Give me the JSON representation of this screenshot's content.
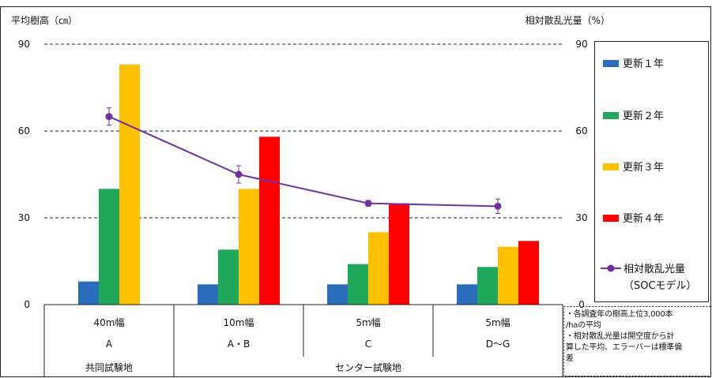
{
  "chart_data": {
    "type": "bar",
    "left_axis_title": "平均樹高（㎝）",
    "right_axis_title": "相対散乱光量（%）",
    "ylim": [
      0,
      90
    ],
    "y_ticks": [
      "0",
      "30",
      "60",
      "90"
    ],
    "y2lim": [
      0,
      90
    ],
    "y2_ticks": [
      "0",
      "30",
      "60",
      "90"
    ],
    "grid": "dashed at 30, 60, 90",
    "legend_position": "right",
    "categories": [
      {
        "width": "40m幅",
        "plot": "A"
      },
      {
        "width": "10m幅",
        "plot": "A・B"
      },
      {
        "width": "5m幅",
        "plot": "C"
      },
      {
        "width": "5m幅",
        "plot": "D～G"
      }
    ],
    "groups": [
      {
        "label": "共同試験地",
        "span": [
          0,
          0
        ]
      },
      {
        "label": "センター試験地",
        "span": [
          1,
          3
        ]
      }
    ],
    "series": [
      {
        "name": "更新１年",
        "color": "#2a6ebb",
        "values": [
          8,
          7,
          7,
          7
        ]
      },
      {
        "name": "更新２年",
        "color": "#1fa85a",
        "values": [
          40,
          19,
          14,
          13
        ]
      },
      {
        "name": "更新３年",
        "color": "#ffc000",
        "values": [
          83,
          40,
          25,
          20
        ]
      },
      {
        "name": "更新４年",
        "color": "#ff0000",
        "values": [
          null,
          58,
          35,
          22
        ]
      }
    ],
    "line_series": {
      "name_lines": [
        "相対散乱光量",
        "（SOCモデル）"
      ],
      "color": "#7030a0",
      "axis": "right",
      "values": [
        65,
        45,
        35,
        34
      ],
      "error": [
        3,
        3,
        1,
        2.5
      ]
    }
  },
  "notes": [
    "・各調査年の樹高上位3,000本",
    "/haの平均",
    "・相対散乱光量は開空度から計",
    "算した平均、エラーバーは標準偏",
    "差"
  ]
}
